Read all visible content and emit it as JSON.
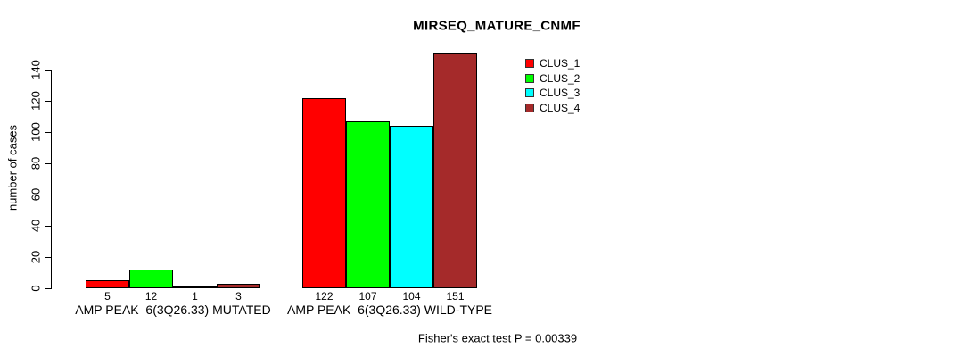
{
  "title": "MIRSEQ_MATURE_CNMF",
  "annotation": "Fisher's exact test P = 0.00339",
  "chart_data": {
    "type": "bar",
    "title": "MIRSEQ_MATURE_CNMF",
    "ylabel": "number of cases",
    "xlabel": "",
    "categories": [
      "AMP PEAK  6(3Q26.33) MUTATED",
      "AMP PEAK  6(3Q26.33) WILD-TYPE"
    ],
    "series": [
      {
        "name": "CLUS_1",
        "color": "#ff0000",
        "values": [
          5,
          122
        ]
      },
      {
        "name": "CLUS_2",
        "color": "#00ff00",
        "values": [
          12,
          107
        ]
      },
      {
        "name": "CLUS_3",
        "color": "#00ffff",
        "values": [
          1,
          104
        ]
      },
      {
        "name": "CLUS_4",
        "color": "#a52a2a",
        "values": [
          3,
          151
        ]
      }
    ],
    "yticks": [
      0,
      20,
      40,
      60,
      80,
      100,
      120,
      140
    ],
    "ylim": [
      0,
      151
    ],
    "grid": false,
    "bar_value_labels": true,
    "legend_position": "top-right",
    "annotation": "Fisher's exact test P = 0.00339"
  },
  "colors": {
    "background": "#ffffff",
    "axis": "#000000",
    "text": "#000000"
  }
}
